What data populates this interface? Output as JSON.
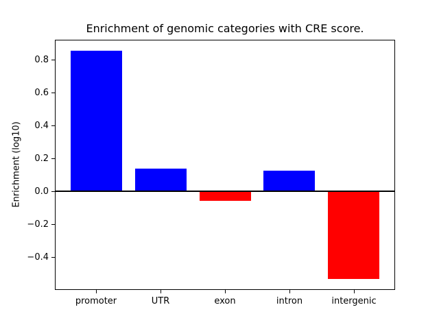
{
  "chart_data": {
    "type": "bar",
    "title": "Enrichment of genomic categories with CRE score.",
    "xlabel": "",
    "ylabel": "Enrichment (log10)",
    "categories": [
      "promoter",
      "UTR",
      "exon",
      "intron",
      "intergenic"
    ],
    "values": [
      0.855,
      0.138,
      -0.057,
      0.124,
      -0.535
    ],
    "positive_color": "#0000ff",
    "negative_color": "#ff0000",
    "ylim": [
      -0.6,
      0.92
    ],
    "yticks": [
      0.8,
      0.6,
      0.4,
      0.2,
      0.0,
      -0.2,
      -0.4
    ],
    "ytick_labels": [
      "0.8",
      "0.6",
      "0.4",
      "0.2",
      "0.0",
      "−0.2",
      "−0.4"
    ],
    "zero_line": true,
    "grid": false,
    "legend": "none",
    "spine_color": "#000000",
    "background_color": "#ffffff"
  }
}
